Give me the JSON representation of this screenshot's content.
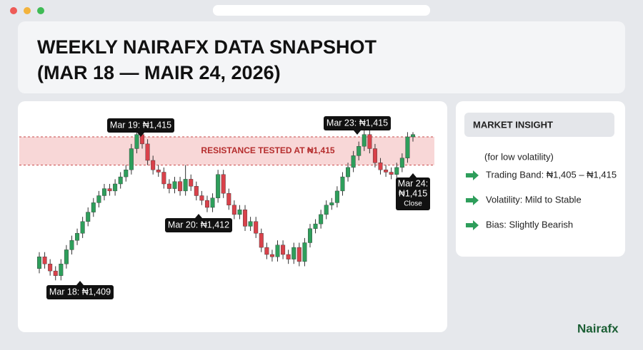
{
  "header": {
    "title": [
      "WEEKLY NAIRAFX DATA SNAPSHOT",
      "(MAR 18 — MAIR 24, 2026)"
    ]
  },
  "chart_data": {
    "type": "candlestick",
    "ylim": [
      1408.5,
      1416
    ],
    "colors": {
      "up": "#2e9e5b",
      "down": "#d9414a"
    },
    "resistance": {
      "label": "RESISTANCE TESTED AT ₦1,415",
      "band": [
        1413.8,
        1415
      ],
      "color": "#f6c9c9"
    },
    "ohlc": [
      [
        1409.4,
        1410.1,
        1409.2,
        1409.9
      ],
      [
        1409.9,
        1410.1,
        1409.4,
        1409.6
      ],
      [
        1409.6,
        1409.8,
        1409.1,
        1409.3
      ],
      [
        1409.3,
        1409.5,
        1408.9,
        1409.1
      ],
      [
        1409.1,
        1409.8,
        1408.9,
        1409.6
      ],
      [
        1409.6,
        1410.4,
        1409.4,
        1410.2
      ],
      [
        1410.2,
        1410.8,
        1410.0,
        1410.6
      ],
      [
        1410.6,
        1411.1,
        1410.4,
        1410.9
      ],
      [
        1410.9,
        1411.6,
        1410.7,
        1411.4
      ],
      [
        1411.4,
        1412.0,
        1411.2,
        1411.8
      ],
      [
        1411.8,
        1412.4,
        1411.6,
        1412.2
      ],
      [
        1412.2,
        1412.7,
        1412.0,
        1412.5
      ],
      [
        1412.5,
        1413.0,
        1412.3,
        1412.8
      ],
      [
        1412.8,
        1413.0,
        1412.5,
        1412.7
      ],
      [
        1412.7,
        1413.2,
        1412.5,
        1413.0
      ],
      [
        1413.0,
        1413.5,
        1412.8,
        1413.3
      ],
      [
        1413.3,
        1413.8,
        1413.1,
        1413.6
      ],
      [
        1413.6,
        1414.7,
        1413.4,
        1414.5
      ],
      [
        1414.5,
        1415.3,
        1414.3,
        1415.1
      ],
      [
        1415.1,
        1415.3,
        1414.5,
        1414.7
      ],
      [
        1414.7,
        1414.9,
        1413.8,
        1414.0
      ],
      [
        1414.0,
        1414.2,
        1413.4,
        1413.6
      ],
      [
        1413.6,
        1413.8,
        1413.3,
        1413.5
      ],
      [
        1413.5,
        1413.7,
        1412.8,
        1413.0
      ],
      [
        1413.0,
        1413.2,
        1412.6,
        1412.8
      ],
      [
        1412.8,
        1413.3,
        1412.6,
        1413.1
      ],
      [
        1413.1,
        1413.3,
        1412.5,
        1412.7
      ],
      [
        1412.7,
        1413.8,
        1412.5,
        1413.2
      ],
      [
        1413.2,
        1413.4,
        1412.7,
        1412.9
      ],
      [
        1412.9,
        1413.1,
        1412.3,
        1412.5
      ],
      [
        1412.5,
        1412.7,
        1412.1,
        1412.3
      ],
      [
        1412.3,
        1412.5,
        1411.8,
        1412.0
      ],
      [
        1412.0,
        1412.6,
        1411.8,
        1412.4
      ],
      [
        1412.4,
        1413.6,
        1412.2,
        1413.4
      ],
      [
        1413.4,
        1413.6,
        1412.4,
        1412.6
      ],
      [
        1412.6,
        1412.8,
        1411.9,
        1412.1
      ],
      [
        1412.1,
        1412.3,
        1411.5,
        1411.7
      ],
      [
        1411.7,
        1412.1,
        1411.5,
        1411.9
      ],
      [
        1411.9,
        1412.1,
        1411.0,
        1411.2
      ],
      [
        1411.2,
        1411.6,
        1411.0,
        1411.4
      ],
      [
        1411.4,
        1411.6,
        1410.7,
        1410.9
      ],
      [
        1410.9,
        1411.1,
        1410.1,
        1410.3
      ],
      [
        1410.3,
        1410.5,
        1409.8,
        1410.0
      ],
      [
        1410.0,
        1410.2,
        1409.7,
        1409.9
      ],
      [
        1409.9,
        1410.6,
        1409.7,
        1410.4
      ],
      [
        1410.4,
        1410.6,
        1409.8,
        1410.0
      ],
      [
        1410.0,
        1410.2,
        1409.6,
        1409.8
      ],
      [
        1409.8,
        1410.5,
        1409.6,
        1410.3
      ],
      [
        1410.3,
        1410.5,
        1409.5,
        1409.7
      ],
      [
        1409.7,
        1410.7,
        1409.5,
        1410.5
      ],
      [
        1410.5,
        1411.3,
        1410.3,
        1411.1
      ],
      [
        1411.1,
        1411.5,
        1410.9,
        1411.3
      ],
      [
        1411.3,
        1411.9,
        1411.1,
        1411.7
      ],
      [
        1411.7,
        1412.3,
        1411.5,
        1412.1
      ],
      [
        1412.1,
        1412.4,
        1411.9,
        1412.2
      ],
      [
        1412.2,
        1412.9,
        1412.0,
        1412.7
      ],
      [
        1412.7,
        1413.5,
        1412.5,
        1413.3
      ],
      [
        1413.3,
        1413.9,
        1413.1,
        1413.7
      ],
      [
        1413.7,
        1414.4,
        1413.5,
        1414.2
      ],
      [
        1414.2,
        1414.8,
        1414.0,
        1414.6
      ],
      [
        1414.6,
        1415.3,
        1414.4,
        1415.1
      ],
      [
        1415.1,
        1415.3,
        1414.3,
        1414.5
      ],
      [
        1414.5,
        1414.7,
        1413.7,
        1413.9
      ],
      [
        1413.9,
        1414.1,
        1413.4,
        1413.6
      ],
      [
        1413.6,
        1413.8,
        1413.3,
        1413.5
      ],
      [
        1413.5,
        1413.7,
        1413.2,
        1413.4
      ],
      [
        1413.4,
        1413.9,
        1413.2,
        1413.7
      ],
      [
        1413.7,
        1414.3,
        1413.5,
        1414.1
      ],
      [
        1414.1,
        1415.2,
        1413.9,
        1415.0
      ],
      [
        1415.0,
        1415.2,
        1414.8,
        1415.1
      ]
    ],
    "annotations": [
      [
        "Mar 19: ₦1,415"
      ],
      [
        "Mar 20: ₦1,412"
      ],
      [
        "Mar 18: ₦1,409"
      ],
      [
        "Mar 23: ₦1,415"
      ],
      [
        "Mar 24:",
        "₦1,415",
        "Close"
      ]
    ]
  },
  "insight": {
    "title": "MARKET INSIGHT",
    "note": "(for low volatility)",
    "items": [
      "Trading Band: ₦1,405 – ₦1,415",
      "Volatility: Mild to Stable",
      "Bias: Slightly Bearish"
    ]
  },
  "logo": "Nairafx"
}
